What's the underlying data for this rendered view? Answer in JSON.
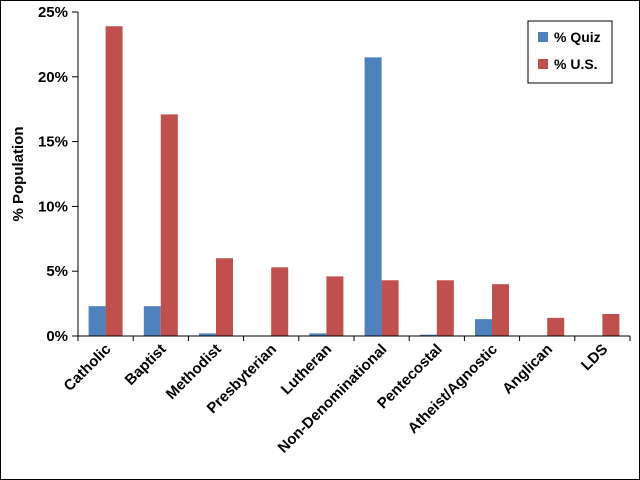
{
  "chart_data": {
    "type": "bar",
    "ylabel": "% Population",
    "xlabel": "",
    "title": "",
    "ylim": [
      0,
      25
    ],
    "yticks": [
      0,
      5,
      10,
      15,
      20,
      25
    ],
    "ytick_labels": [
      "0%",
      "5%",
      "10%",
      "15%",
      "20%",
      "25%"
    ],
    "grid": false,
    "legend_position": "top-right",
    "categories": [
      "Catholic",
      "Baptist",
      "Methodist",
      "Presbyterian",
      "Lutheran",
      "Non-Denominational",
      "Pentecostal",
      "Atheist/Agnostic",
      "Anglican",
      "LDS"
    ],
    "series": [
      {
        "name": "% Quiz",
        "color": "#4F81BD",
        "values": [
          2.3,
          2.3,
          0.2,
          0.0,
          0.2,
          21.5,
          0.1,
          1.3,
          0.0,
          0.0
        ]
      },
      {
        "name": "% U.S.",
        "color": "#C0504D",
        "values": [
          23.9,
          17.1,
          6.0,
          5.3,
          4.6,
          4.3,
          4.3,
          4.0,
          1.4,
          1.7
        ]
      }
    ]
  }
}
